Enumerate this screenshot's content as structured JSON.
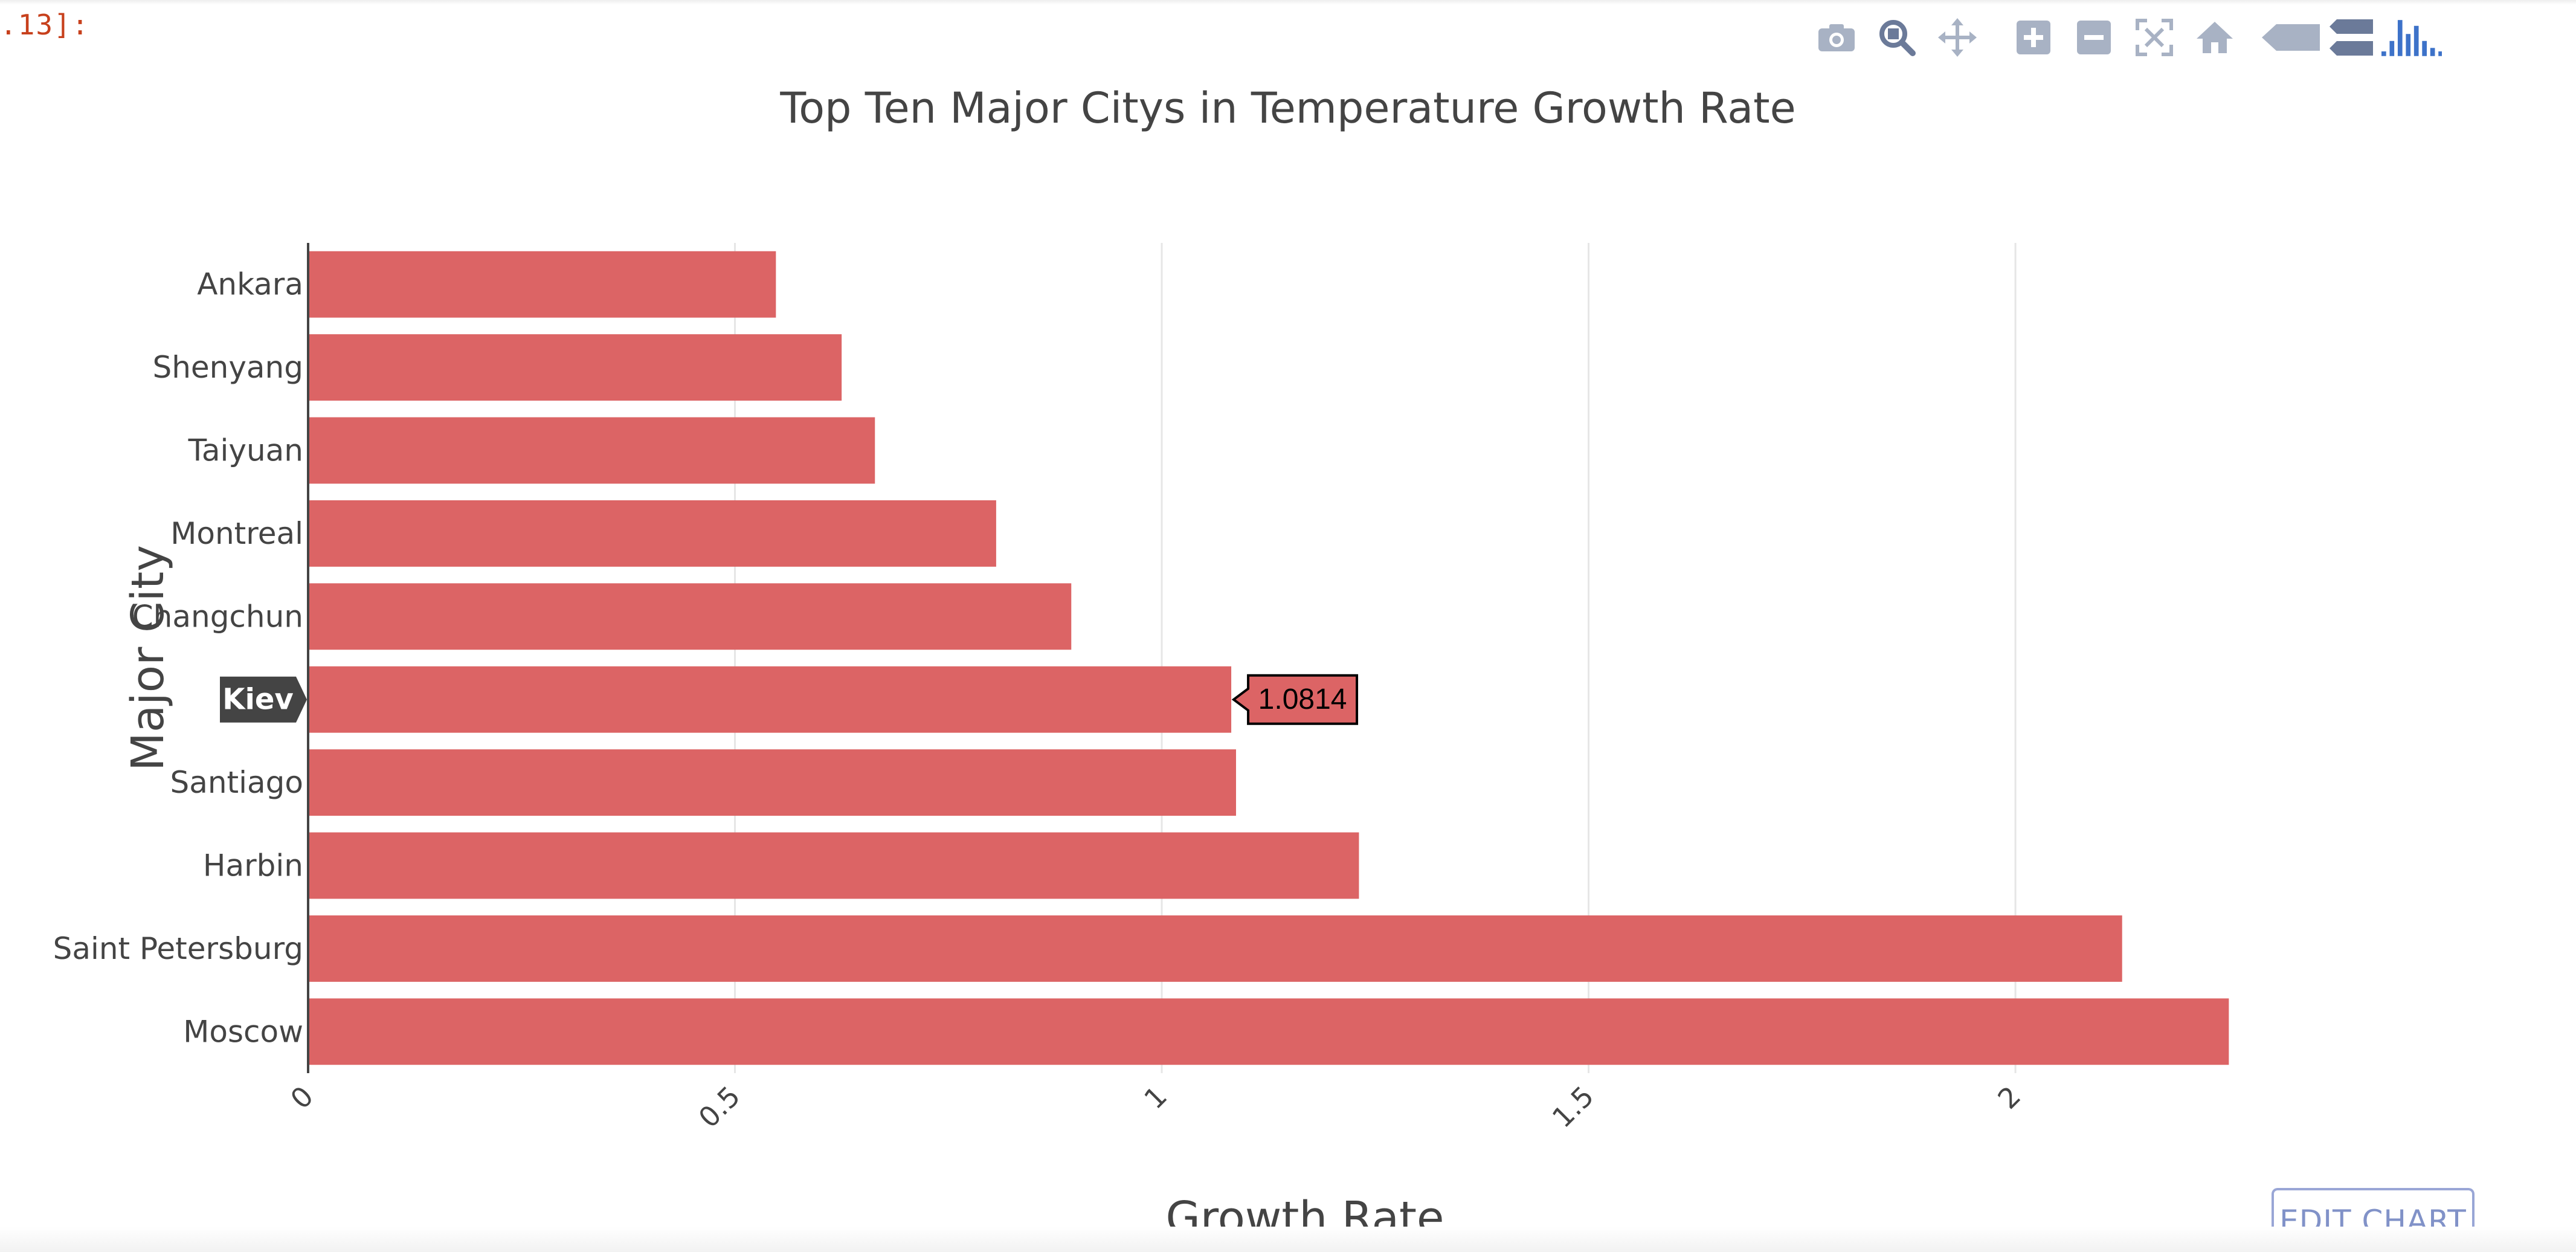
{
  "notebook": {
    "cell_prompt": ".13]:"
  },
  "toolbar": {
    "buttons": [
      {
        "name": "camera-icon",
        "title": "Download plot as a png"
      },
      {
        "name": "zoom-icon",
        "title": "Zoom"
      },
      {
        "name": "pan-icon",
        "title": "Pan"
      },
      {
        "name": "zoom-in-icon",
        "title": "Zoom in"
      },
      {
        "name": "zoom-out-icon",
        "title": "Zoom out"
      },
      {
        "name": "autoscale-icon",
        "title": "Autoscale"
      },
      {
        "name": "home-icon",
        "title": "Reset axes"
      },
      {
        "name": "spike-closest-icon",
        "title": "Show closest data on hover"
      },
      {
        "name": "spike-compare-icon",
        "title": "Compare data on hover"
      },
      {
        "name": "plotly-logo-icon",
        "title": "Produced with Plotly"
      }
    ]
  },
  "edit_chart_label": "EDIT CHART",
  "colors": {
    "bar": "#dc6465",
    "grid": "#e6e6e6",
    "axis_text": "#444444",
    "hover_label_bg": "#444444",
    "modebar_icon": "#a8b2c4",
    "modebar_logo": "#3d72c9"
  },
  "chart_data": {
    "type": "bar",
    "orientation": "horizontal",
    "title": "Top Ten Major Citys in Temperature Growth Rate",
    "xlabel": "Growth Rate",
    "ylabel": "Major City",
    "categories": [
      "Ankara",
      "Shenyang",
      "Taiyuan",
      "Montreal",
      "Changchun",
      "Kiev",
      "Santiago",
      "Harbin",
      "Saint Petersburg",
      "Moscow"
    ],
    "values": [
      0.548,
      0.625,
      0.664,
      0.806,
      0.894,
      1.0814,
      1.087,
      1.231,
      2.125,
      2.25
    ],
    "xlim": [
      0,
      2.3
    ],
    "xticks": [
      0,
      0.5,
      1,
      1.5,
      2
    ],
    "xtick_labels": [
      "0",
      "0.5",
      "1",
      "1.5",
      "2"
    ],
    "grid": true,
    "legend": "none",
    "hover": {
      "category": "Kiev",
      "value_label": "1.0814"
    }
  }
}
